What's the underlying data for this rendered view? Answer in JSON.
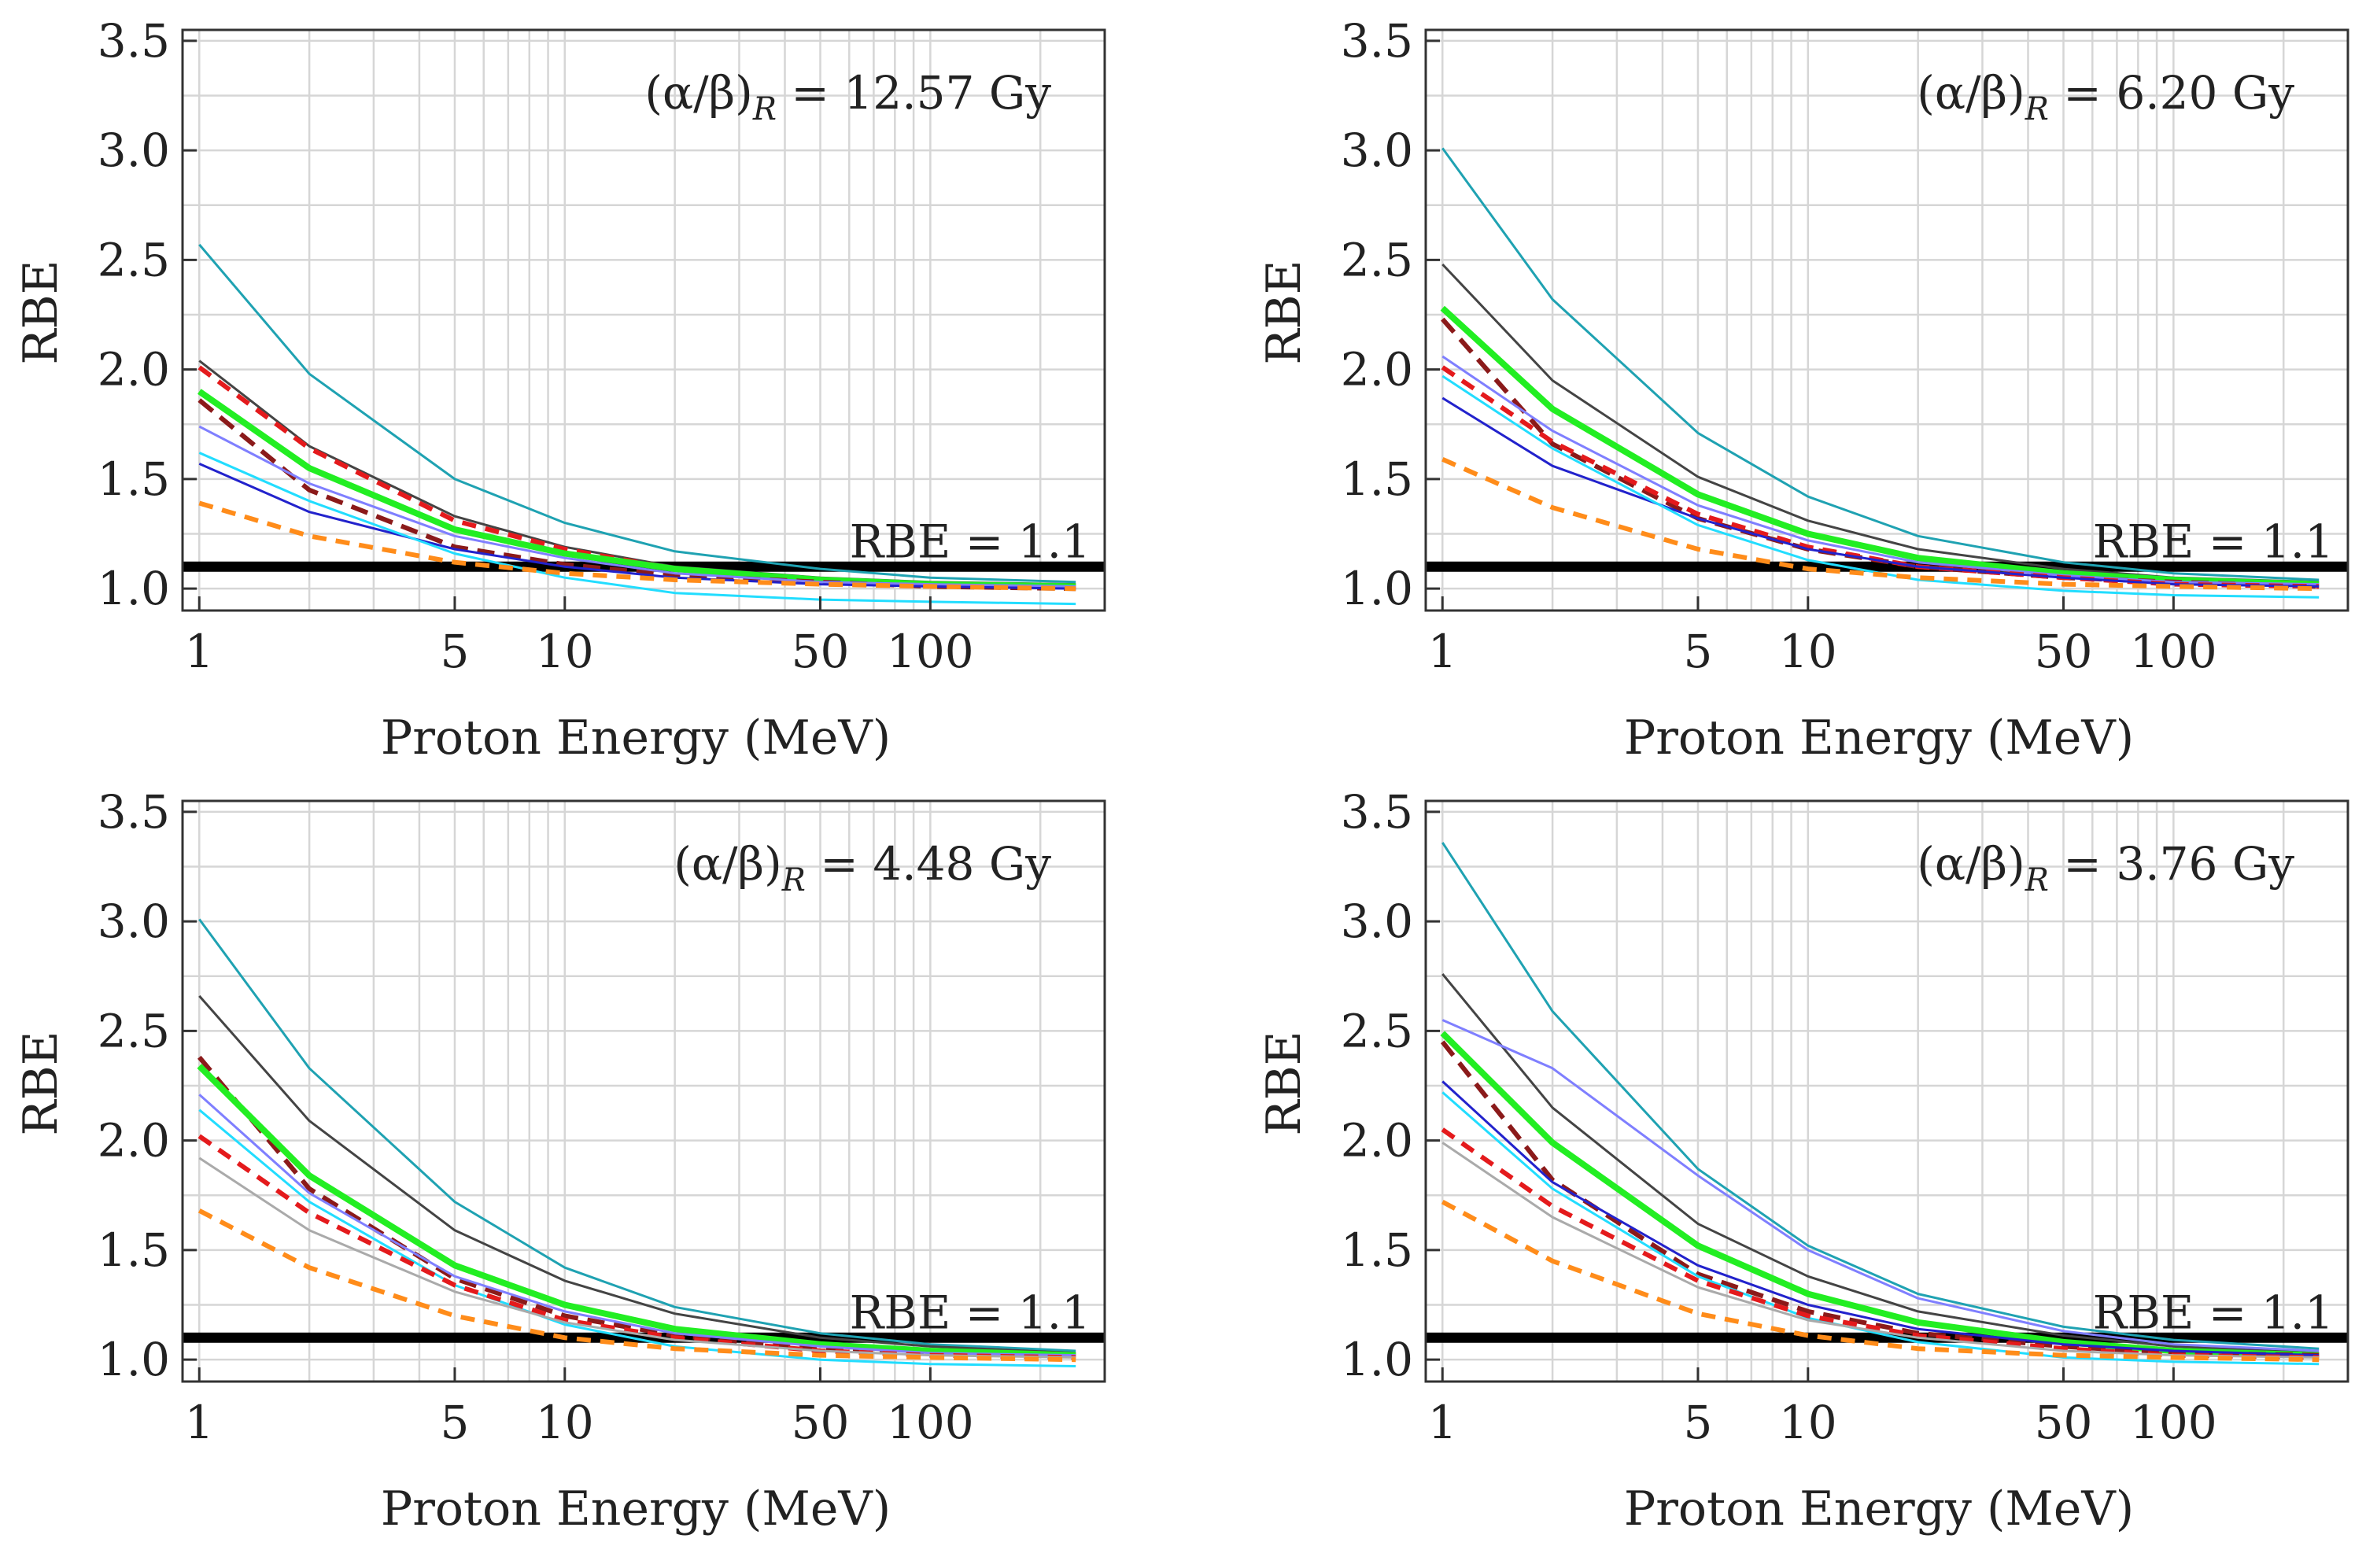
{
  "chart_data": [
    {
      "type": "line",
      "xscale": "log",
      "xlim": [
        0.9,
        300
      ],
      "ylim": [
        0.9,
        3.55
      ],
      "xlabel": "Proton Energy (MeV)",
      "ylabel": "RBE",
      "xticks": [
        1,
        5,
        10,
        50,
        100
      ],
      "xtick_labels": [
        "1",
        "5",
        "10",
        "50",
        "100"
      ],
      "yticks": [
        1.0,
        1.5,
        2.0,
        2.5,
        3.0,
        3.5
      ],
      "ytick_labels": [
        "1.0",
        "1.5",
        "2.0",
        "2.5",
        "3.0",
        "3.5"
      ],
      "grid": true,
      "annotation": {
        "prefix": "(α/β)",
        "subscript": "R",
        "suffix": " = 12.57 Gy"
      },
      "reference": {
        "y": 1.1,
        "label": "RBE = 1.1",
        "color": "#000000"
      },
      "x": [
        1,
        2,
        5,
        10,
        20,
        50,
        100,
        250
      ],
      "series": [
        {
          "name": "teal",
          "color": "#1fa2b2",
          "width": 3,
          "dash": "",
          "values": [
            2.57,
            1.98,
            1.5,
            1.3,
            1.17,
            1.09,
            1.05,
            1.03
          ]
        },
        {
          "name": "dark-gray",
          "color": "#444444",
          "width": 3,
          "dash": "",
          "values": [
            2.04,
            1.65,
            1.33,
            1.19,
            1.1,
            1.05,
            1.03,
            1.02
          ]
        },
        {
          "name": "red-dash",
          "color": "#e41a1c",
          "width": 6,
          "dash": "18,12",
          "values": [
            2.01,
            1.64,
            1.31,
            1.18,
            1.09,
            1.04,
            1.02,
            1.01
          ]
        },
        {
          "name": "green",
          "color": "#22ee22",
          "width": 8,
          "dash": "",
          "values": [
            1.9,
            1.55,
            1.27,
            1.16,
            1.09,
            1.04,
            1.02,
            1.01
          ]
        },
        {
          "name": "dark-red-dash",
          "color": "#8b1a1a",
          "width": 6,
          "dash": "22,12",
          "values": [
            1.86,
            1.45,
            1.19,
            1.11,
            1.06,
            1.03,
            1.01,
            1.0
          ]
        },
        {
          "name": "light-blue",
          "color": "#7f7fff",
          "width": 3,
          "dash": "",
          "values": [
            1.74,
            1.48,
            1.24,
            1.14,
            1.07,
            1.03,
            1.02,
            1.01
          ]
        },
        {
          "name": "blue",
          "color": "#2222cc",
          "width": 3,
          "dash": "",
          "values": [
            1.57,
            1.35,
            1.18,
            1.1,
            1.05,
            1.02,
            1.01,
            1.0
          ]
        },
        {
          "name": "cyan",
          "color": "#22ddff",
          "width": 3,
          "dash": "",
          "values": [
            1.62,
            1.4,
            1.16,
            1.05,
            0.98,
            0.95,
            0.94,
            0.93
          ]
        },
        {
          "name": "orange-dash",
          "color": "#ff8c1a",
          "width": 6,
          "dash": "18,12",
          "values": [
            1.39,
            1.24,
            1.12,
            1.07,
            1.04,
            1.02,
            1.01,
            1.0
          ]
        }
      ]
    },
    {
      "type": "line",
      "xscale": "log",
      "xlim": [
        0.9,
        300
      ],
      "ylim": [
        0.9,
        3.55
      ],
      "xlabel": "Proton Energy (MeV)",
      "ylabel": "RBE",
      "xticks": [
        1,
        5,
        10,
        50,
        100
      ],
      "xtick_labels": [
        "1",
        "5",
        "10",
        "50",
        "100"
      ],
      "yticks": [
        1.0,
        1.5,
        2.0,
        2.5,
        3.0,
        3.5
      ],
      "ytick_labels": [
        "1.0",
        "1.5",
        "2.0",
        "2.5",
        "3.0",
        "3.5"
      ],
      "grid": true,
      "annotation": {
        "prefix": "(α/β)",
        "subscript": "R",
        "suffix": " = 6.20 Gy"
      },
      "reference": {
        "y": 1.1,
        "label": "RBE = 1.1",
        "color": "#000000"
      },
      "x": [
        1,
        2,
        5,
        10,
        20,
        50,
        100,
        250
      ],
      "series": [
        {
          "name": "teal",
          "color": "#1fa2b2",
          "width": 3,
          "dash": "",
          "values": [
            3.01,
            2.32,
            1.71,
            1.42,
            1.24,
            1.12,
            1.07,
            1.04
          ]
        },
        {
          "name": "dark-gray",
          "color": "#444444",
          "width": 3,
          "dash": "",
          "values": [
            2.48,
            1.95,
            1.51,
            1.31,
            1.18,
            1.09,
            1.05,
            1.03
          ]
        },
        {
          "name": "green",
          "color": "#22ee22",
          "width": 8,
          "dash": "",
          "values": [
            2.28,
            1.82,
            1.43,
            1.25,
            1.14,
            1.07,
            1.04,
            1.02
          ]
        },
        {
          "name": "dark-red-dash",
          "color": "#8b1a1a",
          "width": 6,
          "dash": "22,12",
          "values": [
            2.23,
            1.66,
            1.32,
            1.18,
            1.1,
            1.05,
            1.03,
            1.01
          ]
        },
        {
          "name": "light-blue",
          "color": "#7f7fff",
          "width": 3,
          "dash": "",
          "values": [
            2.06,
            1.72,
            1.38,
            1.22,
            1.12,
            1.06,
            1.03,
            1.02
          ]
        },
        {
          "name": "red-dash",
          "color": "#e41a1c",
          "width": 6,
          "dash": "18,12",
          "values": [
            2.01,
            1.67,
            1.34,
            1.19,
            1.1,
            1.05,
            1.02,
            1.01
          ]
        },
        {
          "name": "blue",
          "color": "#2222cc",
          "width": 3,
          "dash": "",
          "values": [
            1.87,
            1.56,
            1.32,
            1.18,
            1.1,
            1.05,
            1.02,
            1.01
          ]
        },
        {
          "name": "cyan",
          "color": "#22ddff",
          "width": 3,
          "dash": "",
          "values": [
            1.97,
            1.64,
            1.29,
            1.13,
            1.04,
            0.99,
            0.97,
            0.96
          ]
        },
        {
          "name": "orange-dash",
          "color": "#ff8c1a",
          "width": 6,
          "dash": "18,12",
          "values": [
            1.59,
            1.37,
            1.18,
            1.09,
            1.05,
            1.02,
            1.01,
            1.0
          ]
        }
      ]
    },
    {
      "type": "line",
      "xscale": "log",
      "xlim": [
        0.9,
        300
      ],
      "ylim": [
        0.9,
        3.55
      ],
      "xlabel": "Proton Energy (MeV)",
      "ylabel": "RBE",
      "xticks": [
        1,
        5,
        10,
        50,
        100
      ],
      "xtick_labels": [
        "1",
        "5",
        "10",
        "50",
        "100"
      ],
      "yticks": [
        1.0,
        1.5,
        2.0,
        2.5,
        3.0,
        3.5
      ],
      "ytick_labels": [
        "1.0",
        "1.5",
        "2.0",
        "2.5",
        "3.0",
        "3.5"
      ],
      "grid": true,
      "annotation": {
        "prefix": "(α/β)",
        "subscript": "R",
        "suffix": " = 4.48 Gy"
      },
      "reference": {
        "y": 1.1,
        "label": "RBE = 1.1",
        "color": "#000000"
      },
      "x": [
        1,
        2,
        5,
        10,
        20,
        50,
        100,
        250
      ],
      "series": [
        {
          "name": "teal",
          "color": "#1fa2b2",
          "width": 3,
          "dash": "",
          "values": [
            3.01,
            2.33,
            1.72,
            1.42,
            1.24,
            1.12,
            1.07,
            1.04
          ]
        },
        {
          "name": "dark-gray",
          "color": "#444444",
          "width": 3,
          "dash": "",
          "values": [
            2.66,
            2.09,
            1.59,
            1.36,
            1.21,
            1.1,
            1.06,
            1.03
          ]
        },
        {
          "name": "dark-red-dash",
          "color": "#8b1a1a",
          "width": 6,
          "dash": "22,12",
          "values": [
            2.38,
            1.78,
            1.37,
            1.2,
            1.11,
            1.05,
            1.03,
            1.02
          ]
        },
        {
          "name": "green",
          "color": "#22ee22",
          "width": 8,
          "dash": "",
          "values": [
            2.34,
            1.84,
            1.43,
            1.25,
            1.14,
            1.07,
            1.04,
            1.02
          ]
        },
        {
          "name": "light-blue",
          "color": "#7f7fff",
          "width": 3,
          "dash": "",
          "values": [
            2.21,
            1.76,
            1.38,
            1.22,
            1.12,
            1.06,
            1.03,
            1.02
          ]
        },
        {
          "name": "cyan",
          "color": "#22ddff",
          "width": 3,
          "dash": "",
          "values": [
            2.14,
            1.72,
            1.34,
            1.16,
            1.06,
            1.0,
            0.98,
            0.97
          ]
        },
        {
          "name": "red-dash",
          "color": "#e41a1c",
          "width": 6,
          "dash": "18,12",
          "values": [
            2.02,
            1.67,
            1.34,
            1.18,
            1.1,
            1.04,
            1.02,
            1.01
          ]
        },
        {
          "name": "gray",
          "color": "#aaaaaa",
          "width": 3,
          "dash": "",
          "values": [
            1.92,
            1.59,
            1.31,
            1.17,
            1.09,
            1.04,
            1.02,
            1.01
          ]
        },
        {
          "name": "orange-dash",
          "color": "#ff8c1a",
          "width": 6,
          "dash": "18,12",
          "values": [
            1.68,
            1.42,
            1.2,
            1.1,
            1.05,
            1.02,
            1.01,
            1.0
          ]
        }
      ]
    },
    {
      "type": "line",
      "xscale": "log",
      "xlim": [
        0.9,
        300
      ],
      "ylim": [
        0.9,
        3.55
      ],
      "xlabel": "Proton Energy (MeV)",
      "ylabel": "RBE",
      "xticks": [
        1,
        5,
        10,
        50,
        100
      ],
      "xtick_labels": [
        "1",
        "5",
        "10",
        "50",
        "100"
      ],
      "yticks": [
        1.0,
        1.5,
        2.0,
        2.5,
        3.0,
        3.5
      ],
      "ytick_labels": [
        "1.0",
        "1.5",
        "2.0",
        "2.5",
        "3.0",
        "3.5"
      ],
      "grid": true,
      "annotation": {
        "prefix": "(α/β)",
        "subscript": "R",
        "suffix": " = 3.76 Gy"
      },
      "reference": {
        "y": 1.1,
        "label": "RBE = 1.1",
        "color": "#000000"
      },
      "x": [
        1,
        2,
        5,
        10,
        20,
        50,
        100,
        250
      ],
      "series": [
        {
          "name": "teal",
          "color": "#1fa2b2",
          "width": 3,
          "dash": "",
          "values": [
            3.36,
            2.59,
            1.87,
            1.52,
            1.3,
            1.15,
            1.09,
            1.05
          ]
        },
        {
          "name": "dark-gray",
          "color": "#444444",
          "width": 3,
          "dash": "",
          "values": [
            2.76,
            2.15,
            1.62,
            1.38,
            1.22,
            1.11,
            1.06,
            1.03
          ]
        },
        {
          "name": "light-blue",
          "color": "#7f7fff",
          "width": 3,
          "dash": "",
          "values": [
            2.55,
            2.33,
            1.84,
            1.5,
            1.28,
            1.13,
            1.07,
            1.04
          ]
        },
        {
          "name": "green",
          "color": "#22ee22",
          "width": 8,
          "dash": "",
          "values": [
            2.49,
            1.99,
            1.52,
            1.3,
            1.17,
            1.08,
            1.04,
            1.02
          ]
        },
        {
          "name": "dark-red-dash",
          "color": "#8b1a1a",
          "width": 6,
          "dash": "22,12",
          "values": [
            2.45,
            1.82,
            1.39,
            1.22,
            1.12,
            1.06,
            1.03,
            1.02
          ]
        },
        {
          "name": "blue",
          "color": "#2222cc",
          "width": 3,
          "dash": "",
          "values": [
            2.27,
            1.81,
            1.43,
            1.25,
            1.14,
            1.07,
            1.04,
            1.02
          ]
        },
        {
          "name": "cyan",
          "color": "#22ddff",
          "width": 3,
          "dash": "",
          "values": [
            2.22,
            1.78,
            1.38,
            1.19,
            1.08,
            1.01,
            0.99,
            0.98
          ]
        },
        {
          "name": "red-dash",
          "color": "#e41a1c",
          "width": 6,
          "dash": "18,12",
          "values": [
            2.05,
            1.7,
            1.36,
            1.2,
            1.11,
            1.05,
            1.02,
            1.01
          ]
        },
        {
          "name": "gray",
          "color": "#aaaaaa",
          "width": 3,
          "dash": "",
          "values": [
            1.99,
            1.65,
            1.33,
            1.18,
            1.1,
            1.04,
            1.02,
            1.01
          ]
        },
        {
          "name": "orange-dash",
          "color": "#ff8c1a",
          "width": 6,
          "dash": "18,12",
          "values": [
            1.72,
            1.45,
            1.21,
            1.11,
            1.05,
            1.02,
            1.01,
            1.0
          ]
        }
      ]
    }
  ]
}
